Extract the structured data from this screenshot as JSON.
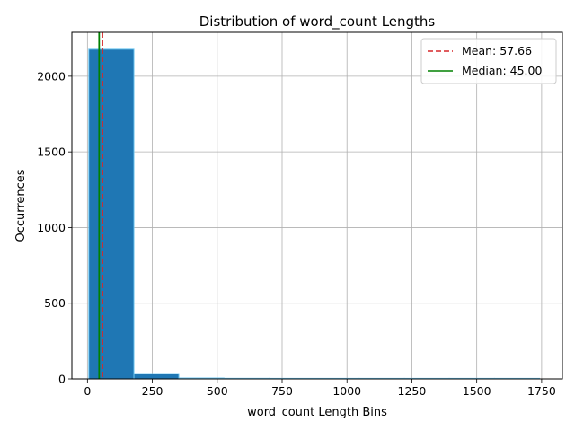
{
  "chart_data": {
    "type": "bar",
    "title": "Distribution of word_count Lengths",
    "xlabel": "word_count Length Bins",
    "ylabel": "Occurrences",
    "xlim": [
      -60,
      1830
    ],
    "ylim": [
      0,
      2290
    ],
    "xticks": [
      0,
      250,
      500,
      750,
      1000,
      1250,
      1500,
      1750
    ],
    "yticks": [
      0,
      500,
      1000,
      1500,
      2000
    ],
    "grid": true,
    "legend_position": "top-right",
    "bins": [
      {
        "x0": 5,
        "x1": 179,
        "count": 2178
      },
      {
        "x0": 179,
        "x1": 352,
        "count": 35
      },
      {
        "x0": 352,
        "x1": 526,
        "count": 6
      },
      {
        "x0": 526,
        "x1": 700,
        "count": 4
      },
      {
        "x0": 700,
        "x1": 873,
        "count": 3
      },
      {
        "x0": 873,
        "x1": 1047,
        "count": 0
      },
      {
        "x0": 1047,
        "x1": 1221,
        "count": 2
      },
      {
        "x0": 1221,
        "x1": 1394,
        "count": 0
      },
      {
        "x0": 1394,
        "x1": 1568,
        "count": 1
      },
      {
        "x0": 1568,
        "x1": 1742,
        "count": 1
      }
    ],
    "bar_color": "#1f77b4",
    "bar_edge_color": "#6ec6f0",
    "lines": [
      {
        "label": "Mean: 57.66",
        "value": 57.66,
        "color": "#d62728",
        "style": "dashed"
      },
      {
        "label": "Median: 45.00",
        "value": 45.0,
        "color": "#008000",
        "style": "solid"
      }
    ]
  }
}
